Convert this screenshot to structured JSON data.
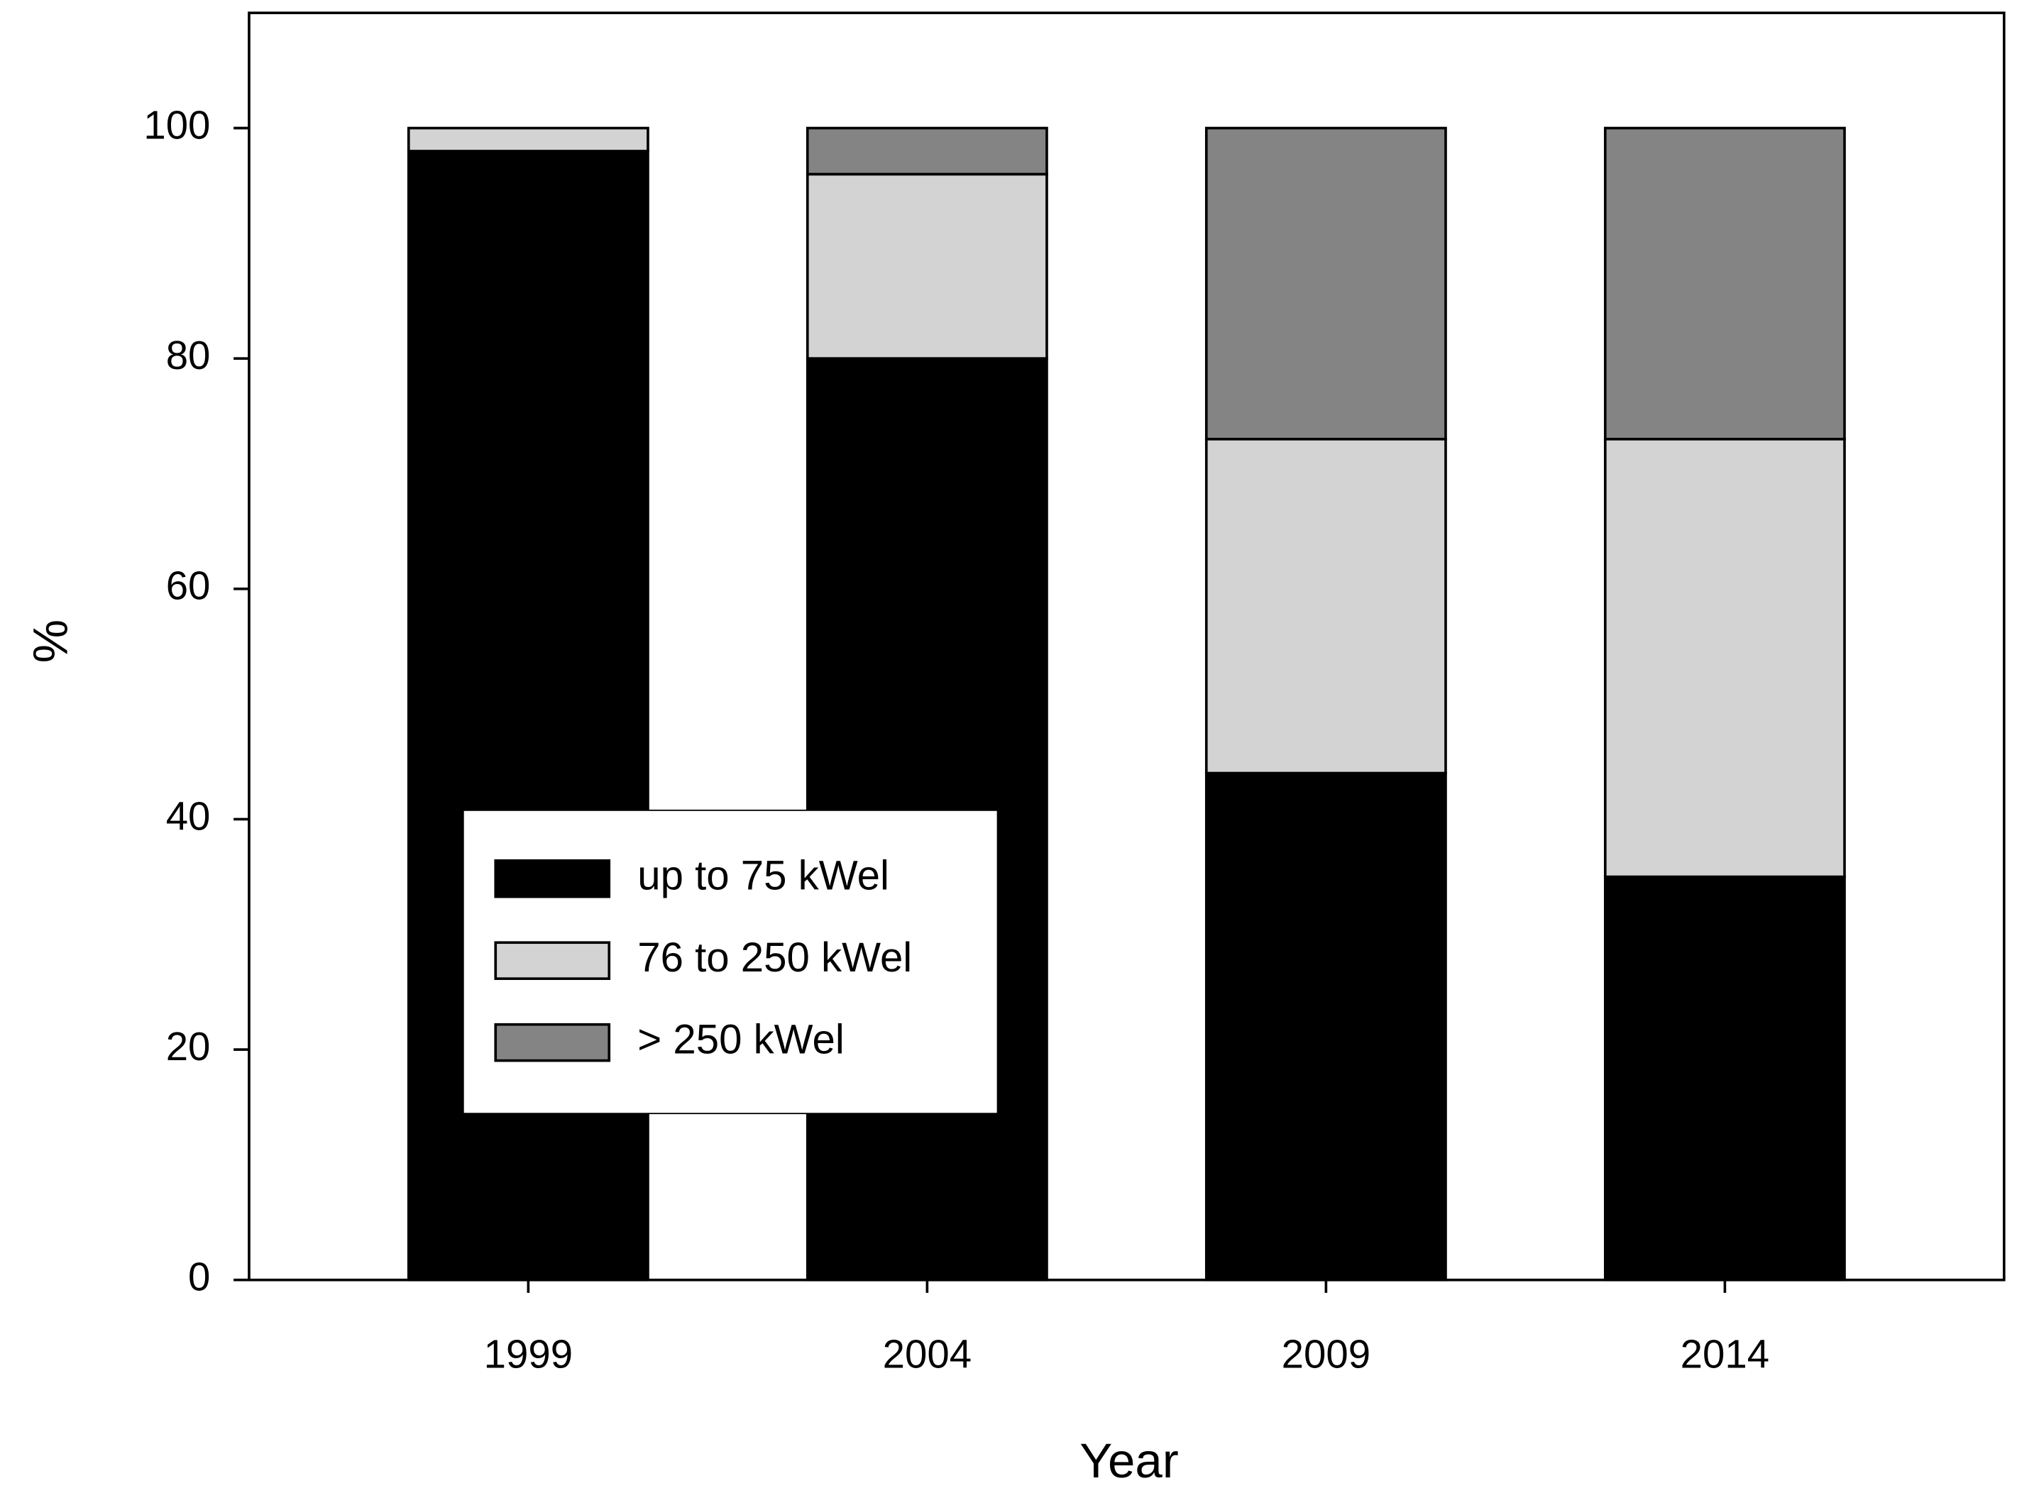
{
  "chart_data": {
    "type": "stacked_bar",
    "x_label": "Year",
    "y_label": "%",
    "categories": [
      "1999",
      "2004",
      "2009",
      "2014"
    ],
    "series": [
      {
        "name": "up to 75 kWel",
        "color": "#000000",
        "values": [
          98,
          80,
          44,
          35
        ]
      },
      {
        "name": "76 to 250 kWel",
        "color": "#d3d3d3",
        "values": [
          2,
          16,
          29,
          38
        ]
      },
      {
        "name": "> 250 kWel",
        "color": "#848484",
        "values": [
          0,
          4,
          27,
          27
        ]
      }
    ],
    "ylim": [
      0,
      110
    ],
    "yticks": [
      0,
      20,
      40,
      60,
      80,
      100
    ],
    "grid": false,
    "legend": "lower left"
  }
}
